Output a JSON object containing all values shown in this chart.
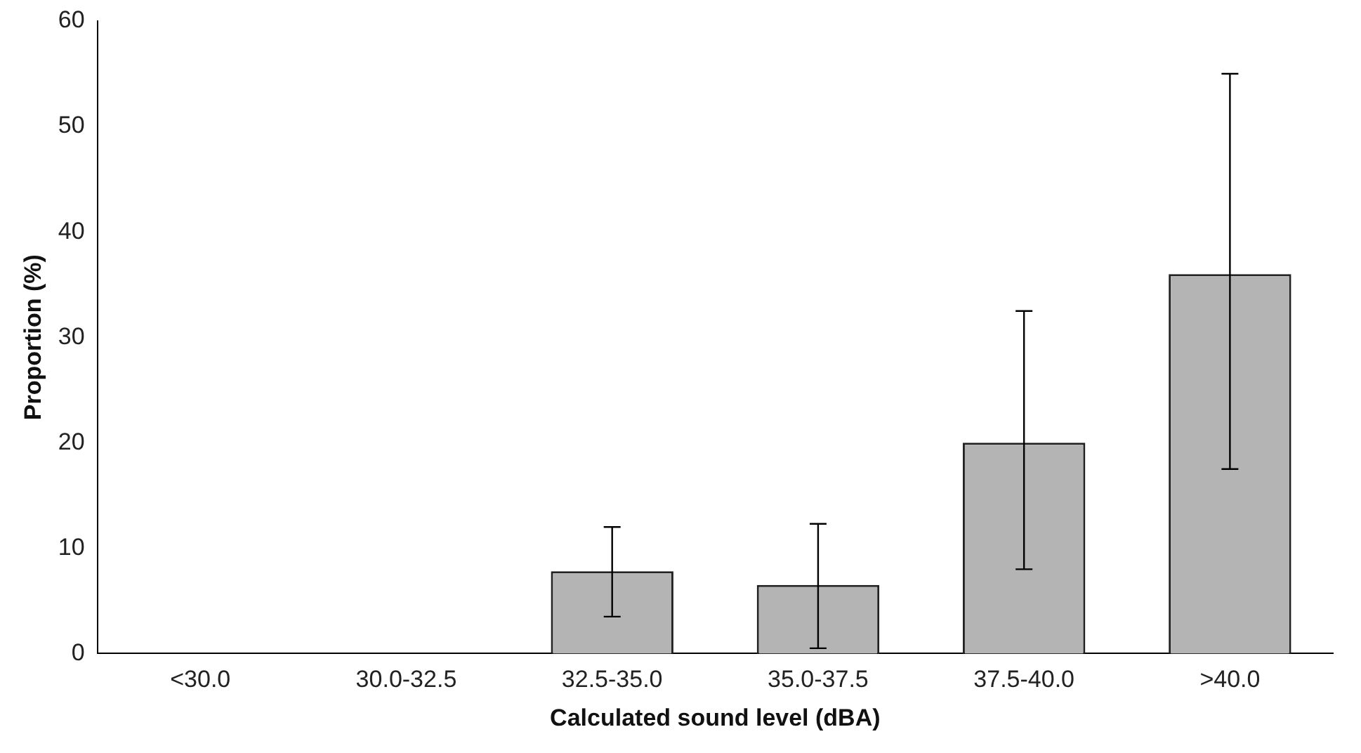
{
  "chart_data": {
    "type": "bar",
    "xlabel": "Calculated sound level (dBA)",
    "ylabel": "Proportion (%)",
    "categories": [
      "<30.0",
      "30.0-32.5",
      "32.5-35.0",
      "35.0-37.5",
      "37.5-40.0",
      ">40.0"
    ],
    "values": [
      0,
      0,
      7.8,
      6.5,
      20,
      36
    ],
    "errors": [
      null,
      null,
      [
        3.5,
        12
      ],
      [
        0.5,
        12.3
      ],
      [
        8,
        32.5
      ],
      [
        17.5,
        55
      ]
    ],
    "color": "#b4b4b4",
    "ylim": [
      0,
      60
    ],
    "yticks": [
      0,
      10,
      20,
      30,
      40,
      50,
      60
    ]
  }
}
